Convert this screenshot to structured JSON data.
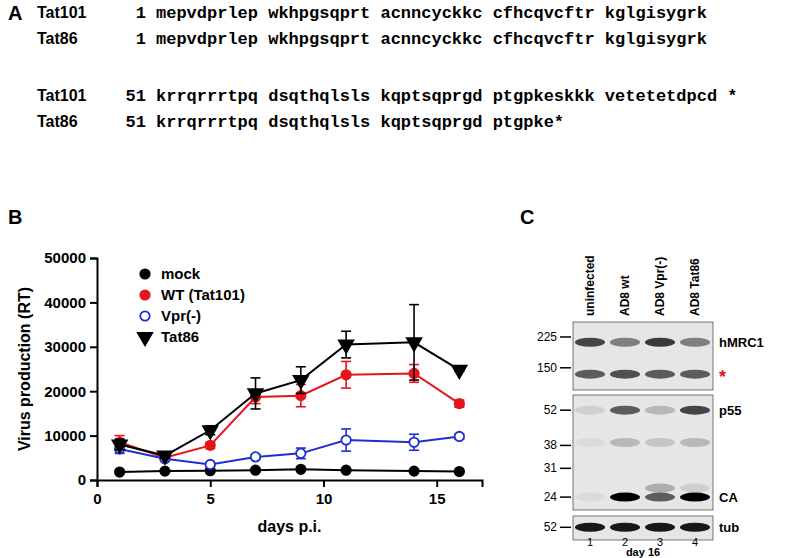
{
  "panel_labels": [
    "A",
    "B",
    "C"
  ],
  "sequence_alignment": {
    "blocks": [
      {
        "rows": [
          {
            "name": "Tat101",
            "start": 1,
            "text": "mepvdprlep wkhpgsqprt acnncyckkc cfhcqvcftr kglgisygrk"
          },
          {
            "name": "Tat86",
            "start": 1,
            "text": "mepvdprlep wkhpgsqprt acnncyckkc cfhcqvcftr kglgisygrk"
          }
        ]
      },
      {
        "rows": [
          {
            "name": "Tat101",
            "start": 51,
            "text": "krrqrrrtpq dsqthqlsls kqptsqprgd ptgpkeskkk vetetetdpcd *"
          },
          {
            "name": "Tat86",
            "start": 51,
            "text": "krrqrrrtpq dsqthqlsls kqptsqprgd ptgpke*"
          }
        ]
      }
    ]
  },
  "chart_data": {
    "type": "line",
    "x_label": "days p.i.",
    "y_label": "Virus production (RT)",
    "x": [
      1,
      3,
      5,
      7,
      9,
      11,
      14,
      16
    ],
    "xlim": [
      0,
      17
    ],
    "xticks": [
      0,
      5,
      10,
      15
    ],
    "ylim": [
      0,
      50000
    ],
    "yticks": [
      0,
      10000,
      20000,
      30000,
      40000,
      50000
    ],
    "legend": "upper left",
    "series": [
      {
        "name": "mock",
        "color": "#000000",
        "marker": "circle",
        "values": [
          1800,
          2000,
          2100,
          2200,
          2400,
          2200,
          2000,
          1900
        ]
      },
      {
        "name": "WT (Tat101)",
        "color": "#e8141b",
        "marker": "circle",
        "values": [
          8500,
          5000,
          7800,
          18700,
          19000,
          23700,
          24000,
          17200
        ],
        "errors": [
          1500,
          500,
          700,
          1500,
          2500,
          3000,
          2000,
          800
        ]
      },
      {
        "name": "Vpr(-)",
        "color": "#1f2fcf",
        "marker": "open-circle",
        "values": [
          7000,
          4800,
          3500,
          5200,
          6000,
          9000,
          8500,
          9800
        ],
        "errors": [
          1000,
          500,
          300,
          500,
          1200,
          2500,
          1800,
          600
        ]
      },
      {
        "name": "Tat86",
        "color": "#000000",
        "marker": "triangle-down",
        "values": [
          8000,
          5500,
          11200,
          19500,
          22500,
          30500,
          31000,
          24800
        ],
        "errors": [
          1200,
          500,
          1000,
          3500,
          3000,
          3000,
          8500,
          300
        ]
      }
    ]
  },
  "blot": {
    "lanes": [
      "uninfected",
      "AD8 wt",
      "AD8 Vpr(-)",
      "AD8 Tat86"
    ],
    "lane_numbers": [
      1,
      2,
      3,
      4
    ],
    "day": "day 16",
    "boxes": [
      {
        "kda_range": [
          274,
          112
        ],
        "markers": [
          225,
          150
        ],
        "bands": [
          {
            "kda": 210,
            "label": "hMRC1",
            "intensities": [
              0.7,
              0.45,
              0.75,
              0.45
            ]
          },
          {
            "kda": 138,
            "label": "*",
            "color": "#e8141b",
            "intensities": [
              0.6,
              0.65,
              0.6,
              0.6
            ]
          }
        ]
      },
      {
        "kda_range": [
          59.5,
          21.4
        ],
        "markers": [
          52,
          38,
          31,
          24
        ],
        "bands": [
          {
            "kda": 52,
            "label": "p55",
            "intensities": [
              0.1,
              0.6,
              0.2,
              0.7
            ]
          },
          {
            "kda": 39,
            "intensities": [
              0.05,
              0.2,
              0.15,
              0.2
            ]
          },
          {
            "kda": 26,
            "intensities": [
              0,
              0,
              0.25,
              0.1
            ]
          },
          {
            "kda": 24,
            "label": "CA",
            "intensities": [
              0.05,
              1,
              0.6,
              1
            ]
          }
        ]
      },
      {
        "kda_range": [
          58,
          46
        ],
        "markers": [
          52
        ],
        "bands": [
          {
            "kda": 52,
            "label": "tub",
            "intensities": [
              0.9,
              0.9,
              0.9,
              0.9
            ]
          }
        ]
      }
    ]
  }
}
